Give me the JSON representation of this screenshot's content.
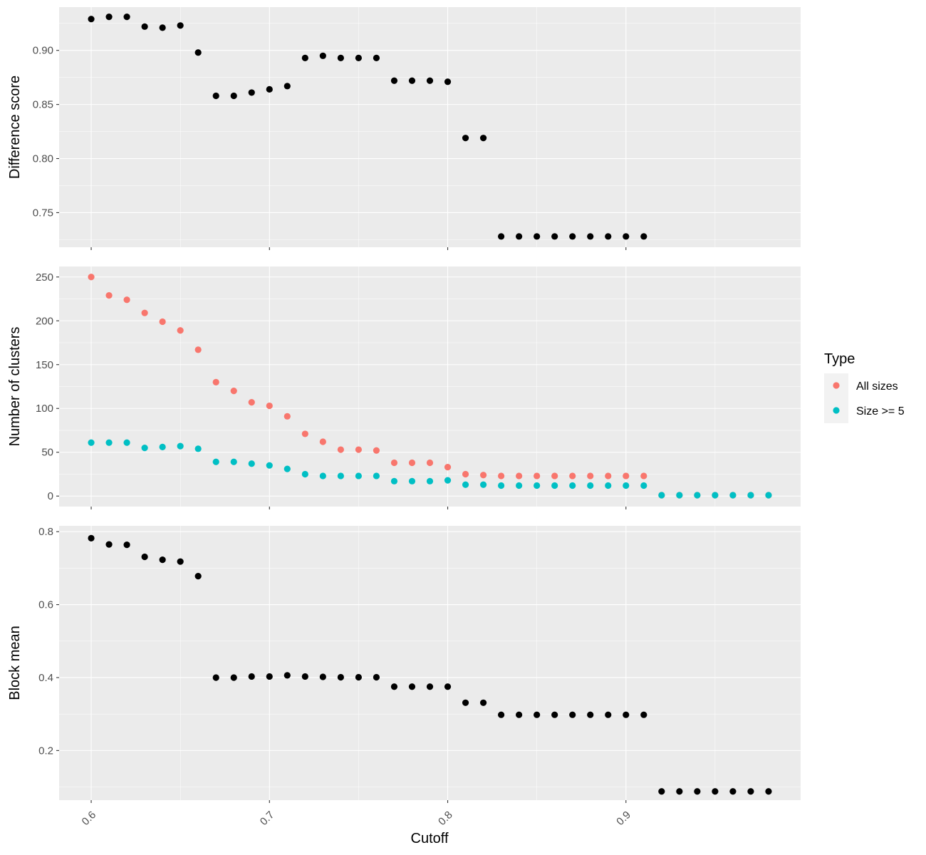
{
  "chart_data": [
    {
      "type": "scatter",
      "ylabel": "Difference score",
      "xlim": [
        0.582,
        0.998
      ],
      "ylim": [
        0.718,
        0.94
      ],
      "y_ticks": [
        "0.75",
        "0.80",
        "0.85",
        "0.90"
      ],
      "y_tick_values": [
        0.75,
        0.8,
        0.85,
        0.9
      ],
      "series": [
        {
          "color": "#000000",
          "x": [
            0.6,
            0.61,
            0.62,
            0.63,
            0.64,
            0.65,
            0.66,
            0.67,
            0.68,
            0.69,
            0.7,
            0.71,
            0.72,
            0.73,
            0.74,
            0.75,
            0.76,
            0.77,
            0.78,
            0.79,
            0.8,
            0.81,
            0.82,
            0.83,
            0.84,
            0.85,
            0.86,
            0.87,
            0.88,
            0.89,
            0.9,
            0.91
          ],
          "y": [
            0.929,
            0.931,
            0.931,
            0.922,
            0.921,
            0.923,
            0.898,
            0.858,
            0.858,
            0.861,
            0.864,
            0.867,
            0.893,
            0.895,
            0.893,
            0.893,
            0.893,
            0.872,
            0.872,
            0.872,
            0.871,
            0.819,
            0.819,
            0.728,
            0.728,
            0.728,
            0.728,
            0.728,
            0.728,
            0.728,
            0.728,
            0.728
          ]
        }
      ]
    },
    {
      "type": "scatter",
      "ylabel": "Number of clusters",
      "xlim": [
        0.582,
        0.998
      ],
      "ylim": [
        -12,
        262
      ],
      "y_ticks": [
        "0",
        "50",
        "100",
        "150",
        "200",
        "250"
      ],
      "y_tick_values": [
        0,
        50,
        100,
        150,
        200,
        250
      ],
      "series": [
        {
          "name": "All sizes",
          "color": "#F8766D",
          "x": [
            0.6,
            0.61,
            0.62,
            0.63,
            0.64,
            0.65,
            0.66,
            0.67,
            0.68,
            0.69,
            0.7,
            0.71,
            0.72,
            0.73,
            0.74,
            0.75,
            0.76,
            0.77,
            0.78,
            0.79,
            0.8,
            0.81,
            0.82,
            0.83,
            0.84,
            0.85,
            0.86,
            0.87,
            0.88,
            0.89,
            0.9,
            0.91,
            0.92,
            0.93,
            0.94,
            0.95,
            0.96,
            0.97,
            0.98
          ],
          "y": [
            250,
            229,
            224,
            209,
            199,
            189,
            167,
            130,
            120,
            107,
            103,
            91,
            71,
            62,
            53,
            53,
            52,
            38,
            38,
            38,
            33,
            25,
            24,
            23,
            23,
            23,
            23,
            23,
            23,
            23,
            23,
            23,
            1,
            1,
            1,
            1,
            1,
            1,
            1
          ]
        },
        {
          "name": "Size >= 5",
          "color": "#00BFC4",
          "x": [
            0.6,
            0.61,
            0.62,
            0.63,
            0.64,
            0.65,
            0.66,
            0.67,
            0.68,
            0.69,
            0.7,
            0.71,
            0.72,
            0.73,
            0.74,
            0.75,
            0.76,
            0.77,
            0.78,
            0.79,
            0.8,
            0.81,
            0.82,
            0.83,
            0.84,
            0.85,
            0.86,
            0.87,
            0.88,
            0.89,
            0.9,
            0.91,
            0.92,
            0.93,
            0.94,
            0.95,
            0.96,
            0.97,
            0.98
          ],
          "y": [
            61,
            61,
            61,
            55,
            56,
            57,
            54,
            39,
            39,
            37,
            35,
            31,
            25,
            23,
            23,
            23,
            23,
            17,
            17,
            17,
            18,
            13,
            13,
            12,
            12,
            12,
            12,
            12,
            12,
            12,
            12,
            12,
            1,
            1,
            1,
            1,
            1,
            1,
            1
          ]
        }
      ]
    },
    {
      "type": "scatter",
      "ylabel": "Block mean",
      "xlabel": "Cutoff",
      "xlim": [
        0.582,
        0.998
      ],
      "ylim": [
        0.064,
        0.816
      ],
      "y_ticks": [
        "0.2",
        "0.4",
        "0.6",
        "0.8"
      ],
      "y_tick_values": [
        0.2,
        0.4,
        0.6,
        0.8
      ],
      "series": [
        {
          "color": "#000000",
          "x": [
            0.6,
            0.61,
            0.62,
            0.63,
            0.64,
            0.65,
            0.66,
            0.67,
            0.68,
            0.69,
            0.7,
            0.71,
            0.72,
            0.73,
            0.74,
            0.75,
            0.76,
            0.77,
            0.78,
            0.79,
            0.8,
            0.81,
            0.82,
            0.83,
            0.84,
            0.85,
            0.86,
            0.87,
            0.88,
            0.89,
            0.9,
            0.91,
            0.92,
            0.93,
            0.94,
            0.95,
            0.96,
            0.97,
            0.98
          ],
          "y": [
            0.782,
            0.765,
            0.764,
            0.731,
            0.723,
            0.718,
            0.678,
            0.4,
            0.4,
            0.403,
            0.403,
            0.406,
            0.403,
            0.402,
            0.401,
            0.401,
            0.401,
            0.375,
            0.375,
            0.375,
            0.375,
            0.331,
            0.331,
            0.298,
            0.298,
            0.298,
            0.298,
            0.298,
            0.298,
            0.298,
            0.298,
            0.298,
            0.088,
            0.088,
            0.088,
            0.088,
            0.088,
            0.088,
            0.088
          ]
        }
      ]
    }
  ],
  "x_axis": {
    "title": "Cutoff",
    "ticks": [
      "0.6",
      "0.7",
      "0.8",
      "0.9"
    ],
    "tick_values": [
      0.6,
      0.7,
      0.8,
      0.9
    ],
    "minor_values": [
      0.65,
      0.75,
      0.85,
      0.95
    ]
  },
  "legend": {
    "title": "Type",
    "items": [
      {
        "label": "All sizes",
        "color": "#F8766D"
      },
      {
        "label": "Size >= 5",
        "color": "#00BFC4"
      }
    ]
  },
  "colors": {
    "panel_background": "#EBEBEB",
    "grid": "#FFFFFF",
    "points": "#000000"
  }
}
